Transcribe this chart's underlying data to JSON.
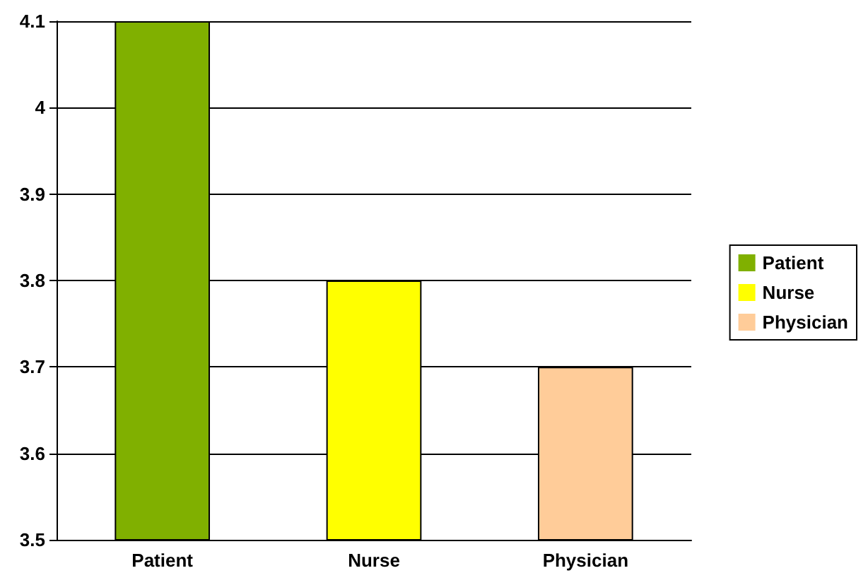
{
  "chart_data": {
    "type": "bar",
    "categories": [
      "Patient",
      "Nurse",
      "Physician"
    ],
    "series": [
      {
        "name": "Patient",
        "color": "#80b000",
        "values": [
          4.1,
          null,
          null
        ]
      },
      {
        "name": "Nurse",
        "color": "#ffff00",
        "values": [
          null,
          3.8,
          null
        ]
      },
      {
        "name": "Physician",
        "color": "#ffcc99",
        "values": [
          null,
          null,
          3.7
        ]
      }
    ],
    "ylim": [
      3.5,
      4.1
    ],
    "yticks": [
      3.5,
      3.6,
      3.7,
      3.8,
      3.9,
      4,
      4.1
    ],
    "grid": "y",
    "legend": "right"
  }
}
